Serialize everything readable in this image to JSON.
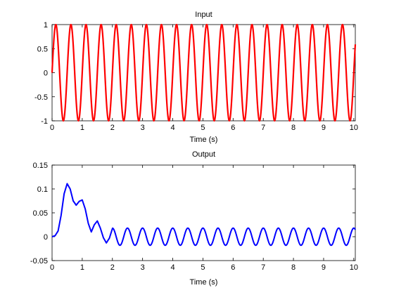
{
  "colors": {
    "input": "#ff0000",
    "output": "#0000ff"
  },
  "chart_data": [
    {
      "type": "line",
      "title": "Input",
      "xlabel": "Time (s)",
      "ylabel": "",
      "xlim": [
        0,
        10.05
      ],
      "ylim": [
        -1,
        1
      ],
      "grid": false,
      "xticks": [
        0,
        1,
        2,
        3,
        4,
        5,
        6,
        7,
        8,
        9,
        10
      ],
      "yticks": [
        -1,
        -0.5,
        0,
        0.5,
        1
      ],
      "x_tick_labels": [
        "0",
        "1",
        "2",
        "3",
        "4",
        "5",
        "6",
        "7",
        "8",
        "9",
        "10"
      ],
      "y_tick_labels": [
        "-1",
        "-0.5",
        "0",
        "0.5",
        "1"
      ],
      "series": [
        {
          "color": "input",
          "signal": "sine",
          "amplitude": 1,
          "frequency_hz": 2,
          "x_start": 0,
          "x_end": 10.05
        }
      ]
    },
    {
      "type": "line",
      "title": "Output",
      "xlabel": "Time (s)",
      "ylabel": "",
      "xlim": [
        0,
        10.05
      ],
      "ylim": [
        -0.05,
        0.15
      ],
      "grid": false,
      "xticks": [
        0,
        1,
        2,
        3,
        4,
        5,
        6,
        7,
        8,
        9,
        10
      ],
      "yticks": [
        -0.05,
        0,
        0.05,
        0.1,
        0.15
      ],
      "x_tick_labels": [
        "0",
        "1",
        "2",
        "3",
        "4",
        "5",
        "6",
        "7",
        "8",
        "9",
        "10"
      ],
      "y_tick_labels": [
        "-0.05",
        "0",
        "0.05",
        "0.1",
        "0.15"
      ],
      "series": [
        {
          "color": "output",
          "x": [
            0,
            0.1,
            0.2,
            0.3,
            0.4,
            0.5,
            0.6,
            0.7,
            0.8,
            0.9,
            1.0,
            1.1,
            1.2,
            1.3,
            1.4,
            1.5,
            1.6,
            1.7,
            1.8,
            1.9,
            2.0
          ],
          "y": [
            0,
            0.002,
            0.012,
            0.045,
            0.09,
            0.111,
            0.1,
            0.075,
            0.066,
            0.074,
            0.077,
            0.058,
            0.028,
            0.01,
            0.025,
            0.033,
            0.018,
            -0.002,
            -0.013,
            -0.003,
            0.017
          ],
          "steady_state": {
            "x_start": 2.0,
            "amplitude": 0.018,
            "frequency_hz": 2
          }
        }
      ]
    }
  ]
}
